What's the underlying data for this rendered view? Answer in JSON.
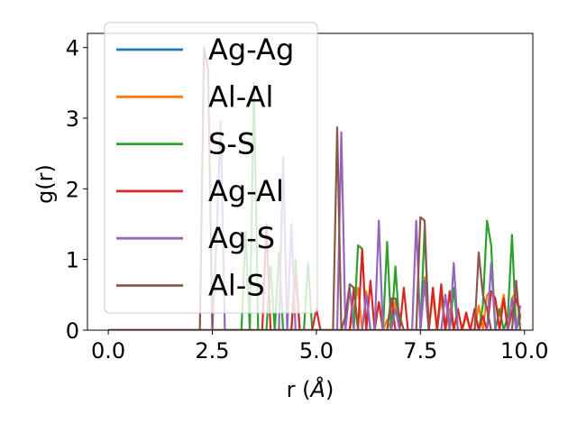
{
  "chart_data": {
    "type": "line",
    "xlabel": "r (Å)",
    "ylabel": "g(r)",
    "xlim": [
      -0.5,
      10.2
    ],
    "ylim": [
      0,
      4.2
    ],
    "xticks": [
      0.0,
      2.5,
      5.0,
      7.5,
      10.0
    ],
    "xtick_labels": [
      "0.0",
      "2.5",
      "5.0",
      "7.5",
      "10.0"
    ],
    "yticks": [
      0,
      1,
      2,
      3,
      4
    ],
    "ytick_labels": [
      "0",
      "1",
      "2",
      "3",
      "4"
    ],
    "grid": false,
    "legend_position": "upper-left",
    "series": [
      {
        "name": "Ag-Ag",
        "color": "#1f77b4",
        "x": [
          0.0,
          9.9
        ],
        "y": [
          0.0,
          0.0
        ]
      },
      {
        "name": "Al-Al",
        "color": "#ff7f0e",
        "x": [
          0.0,
          5.8,
          5.9,
          6.0,
          6.1,
          6.2,
          6.3,
          6.4,
          6.5,
          6.6,
          6.7,
          6.8,
          6.9,
          7.0,
          7.1,
          7.2,
          7.3,
          7.4,
          7.5,
          7.6,
          7.7,
          7.8,
          7.9,
          8.0,
          8.1,
          8.2,
          8.3,
          8.4,
          8.5,
          8.6,
          8.7,
          8.8,
          8.9,
          9.0,
          9.1,
          9.2,
          9.3,
          9.4,
          9.5,
          9.6,
          9.7,
          9.8,
          9.9
        ],
        "y": [
          0.0,
          0.0,
          0.3,
          0.6,
          0.0,
          0.55,
          0.0,
          0.0,
          0.0,
          0.0,
          0.15,
          0.0,
          0.4,
          0.0,
          0.0,
          0.0,
          0.0,
          0.0,
          0.0,
          0.75,
          0.0,
          0.5,
          0.0,
          0.45,
          0.0,
          0.3,
          0.0,
          0.0,
          0.0,
          0.2,
          0.0,
          0.0,
          0.35,
          0.0,
          0.5,
          0.55,
          0.4,
          0.2,
          0.5,
          0.0,
          0.45,
          0.55,
          0.15
        ]
      },
      {
        "name": "S-S",
        "color": "#2ca02c",
        "x": [
          0.0,
          3.2,
          3.3,
          3.4,
          3.5,
          3.6,
          3.7,
          3.8,
          3.9,
          4.0,
          4.1,
          4.2,
          4.3,
          4.4,
          4.5,
          4.6,
          4.7,
          4.8,
          4.9,
          5.0,
          5.9,
          6.0,
          6.1,
          6.2,
          6.3,
          6.4,
          6.5,
          6.6,
          6.7,
          6.8,
          6.9,
          7.0,
          7.1,
          7.2,
          7.3,
          7.4,
          7.5,
          7.6,
          7.7,
          7.8,
          7.9,
          8.0,
          8.1,
          8.2,
          8.3,
          8.4,
          8.5,
          8.6,
          8.7,
          8.8,
          8.9,
          9.0,
          9.1,
          9.2,
          9.3,
          9.4,
          9.5,
          9.6,
          9.7,
          9.8,
          9.9
        ],
        "y": [
          0.0,
          0.0,
          1.4,
          0.0,
          3.5,
          0.0,
          0.0,
          0.0,
          0.9,
          0.0,
          1.1,
          0.0,
          0.0,
          0.0,
          1.0,
          0.0,
          0.0,
          0.95,
          0.0,
          0.0,
          0.0,
          1.2,
          1.15,
          0.0,
          0.0,
          0.0,
          0.0,
          0.0,
          1.25,
          0.0,
          0.9,
          0.0,
          0.0,
          0.0,
          0.0,
          0.0,
          0.0,
          1.45,
          0.0,
          0.0,
          0.0,
          0.6,
          0.0,
          0.0,
          0.6,
          0.0,
          0.0,
          0.0,
          0.0,
          0.0,
          0.0,
          0.35,
          1.55,
          1.2,
          0.0,
          0.3,
          0.0,
          0.2,
          1.35,
          0.0,
          0.2
        ]
      },
      {
        "name": "Ag-Al",
        "color": "#d62728",
        "x": [
          0.0,
          3.7,
          3.8,
          3.9,
          4.0,
          4.4,
          4.5,
          4.6,
          4.9,
          5.0,
          5.1,
          5.8,
          5.9,
          6.0,
          6.1,
          6.2,
          6.3,
          6.4,
          6.5,
          6.6,
          6.7,
          6.8,
          6.9,
          7.0,
          7.1,
          7.2,
          7.3,
          7.4,
          7.5,
          7.6,
          7.7,
          7.8,
          7.9,
          8.0,
          8.1,
          8.2,
          8.3,
          8.4,
          8.5,
          8.6,
          8.7,
          8.8,
          8.9,
          9.0,
          9.1,
          9.2,
          9.3,
          9.4,
          9.5,
          9.6,
          9.7,
          9.8,
          9.9
        ],
        "y": [
          0.0,
          0.0,
          1.5,
          0.0,
          0.0,
          0.0,
          0.8,
          0.0,
          0.0,
          0.3,
          0.0,
          0.0,
          0.6,
          0.0,
          1.15,
          0.0,
          0.7,
          0.0,
          0.4,
          0.0,
          0.0,
          0.45,
          0.0,
          0.0,
          0.6,
          0.0,
          0.0,
          0.0,
          0.0,
          0.7,
          0.0,
          0.6,
          0.0,
          0.65,
          0.0,
          0.55,
          0.0,
          0.3,
          0.0,
          0.25,
          0.0,
          0.3,
          0.0,
          0.2,
          0.0,
          0.55,
          0.45,
          0.0,
          0.45,
          0.0,
          0.25,
          0.45,
          0.2
        ]
      },
      {
        "name": "Ag-S",
        "color": "#9467bd",
        "x": [
          0.0,
          2.4,
          2.5,
          2.6,
          2.7,
          2.8,
          2.9,
          3.0,
          3.1,
          3.2,
          3.3,
          3.4,
          3.5,
          4.1,
          4.2,
          4.3,
          4.4,
          4.5,
          4.6,
          5.5,
          5.6,
          5.7,
          5.8,
          5.9,
          6.0,
          6.1,
          6.2,
          6.3,
          6.4,
          6.5,
          6.6,
          6.7,
          6.8,
          6.9,
          7.0,
          7.1,
          7.2,
          7.3,
          7.4,
          7.5,
          7.6,
          7.7,
          7.8,
          7.9,
          8.0,
          8.1,
          8.2,
          8.3,
          8.4,
          8.5,
          8.6,
          8.7,
          8.8,
          8.9,
          9.0,
          9.1,
          9.2,
          9.3,
          9.4,
          9.5,
          9.6,
          9.7,
          9.8,
          9.9
        ],
        "y": [
          0.0,
          0.0,
          0.0,
          1.3,
          2.95,
          0.0,
          0.0,
          0.0,
          0.0,
          0.0,
          0.0,
          0.0,
          0.0,
          0.0,
          2.45,
          0.0,
          1.5,
          0.0,
          0.0,
          0.0,
          2.8,
          0.0,
          0.6,
          0.0,
          0.0,
          0.0,
          0.5,
          0.0,
          0.0,
          1.55,
          0.0,
          0.0,
          0.0,
          0.3,
          0.0,
          0.0,
          0.0,
          0.0,
          1.55,
          0.0,
          0.7,
          0.0,
          0.0,
          0.0,
          0.0,
          0.5,
          0.0,
          0.95,
          0.0,
          0.0,
          0.0,
          0.0,
          0.0,
          0.0,
          0.0,
          0.0,
          0.95,
          0.0,
          0.0,
          0.0,
          0.0,
          0.45,
          0.0,
          0.35
        ]
      },
      {
        "name": "Al-S",
        "color": "#8c564b",
        "x": [
          0.0,
          2.2,
          2.3,
          2.4,
          2.5,
          5.3,
          5.4,
          5.5,
          5.6,
          5.7,
          5.8,
          5.9,
          6.0,
          6.1,
          6.2,
          6.3,
          6.4,
          6.5,
          6.6,
          6.7,
          6.8,
          6.9,
          7.0,
          7.1,
          7.2,
          7.3,
          7.4,
          7.5,
          7.6,
          7.7,
          7.8,
          7.9,
          8.0,
          8.1,
          8.2,
          8.3,
          8.4,
          8.5,
          8.6,
          8.7,
          8.8,
          8.9,
          9.0,
          9.1,
          9.2,
          9.3,
          9.4,
          9.5,
          9.6,
          9.7,
          9.8,
          9.9
        ],
        "y": [
          0.0,
          0.0,
          4.0,
          3.7,
          0.0,
          0.0,
          0.0,
          2.87,
          0.0,
          0.2,
          0.65,
          0.6,
          0.0,
          0.0,
          0.0,
          0.0,
          0.0,
          0.0,
          0.0,
          0.0,
          0.45,
          0.45,
          0.2,
          0.0,
          0.0,
          0.0,
          0.0,
          1.6,
          1.55,
          0.0,
          0.0,
          0.0,
          0.0,
          0.0,
          0.0,
          0.0,
          0.0,
          0.0,
          0.0,
          0.0,
          0.0,
          1.1,
          0.5,
          0.3,
          0.0,
          0.0,
          0.0,
          0.0,
          0.0,
          0.0,
          0.7,
          0.0
        ]
      }
    ]
  }
}
